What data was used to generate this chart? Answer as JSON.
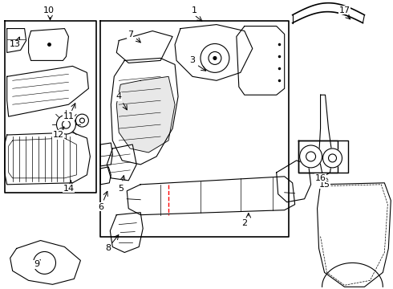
{
  "background_color": "#ffffff",
  "line_color": "#000000",
  "red_dashed_color": "#ff0000",
  "figsize": [
    4.9,
    3.6
  ],
  "dpi": 100
}
